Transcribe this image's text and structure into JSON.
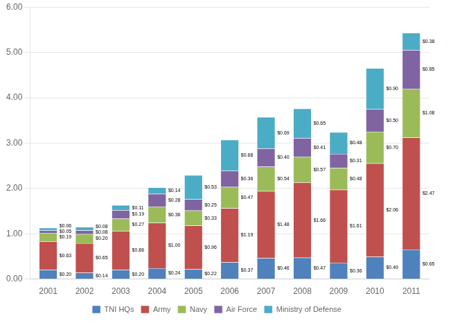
{
  "chart_data": {
    "type": "bar",
    "stacked": true,
    "grid": true,
    "legend": "bottom",
    "data_labels": true,
    "categories": [
      "2001",
      "2002",
      "2003",
      "2004",
      "2005",
      "2006",
      "2007",
      "2008",
      "2009",
      "2010",
      "2011"
    ],
    "series": [
      {
        "name": "TNI HQs",
        "color": "#4F81BD",
        "values": [
          0.2,
          0.14,
          0.2,
          0.24,
          0.22,
          0.37,
          0.46,
          0.47,
          0.36,
          0.49,
          0.65
        ],
        "value_labels": [
          "$0.20",
          "$0.14",
          "$0.20",
          "$0.24",
          "$0.22",
          "$0.37",
          "$0.46",
          "$0.47",
          "$0.36",
          "$0.49",
          "$0.65"
        ]
      },
      {
        "name": "Army",
        "color": "#C0504D",
        "values": [
          0.63,
          0.65,
          0.86,
          1.0,
          0.96,
          1.19,
          1.48,
          1.66,
          1.61,
          2.06,
          2.47
        ],
        "value_labels": [
          "$0.63",
          "$0.65",
          "$0.86",
          "$1.00",
          "$0.96",
          "$1.19",
          "$1.48",
          "$1.66",
          "$1.61",
          "$2.06",
          "$2.47"
        ]
      },
      {
        "name": "Navy",
        "color": "#9BBB59",
        "values": [
          0.19,
          0.2,
          0.27,
          0.36,
          0.33,
          0.47,
          0.54,
          0.57,
          0.48,
          0.7,
          1.08
        ],
        "value_labels": [
          "$0.19",
          "$0.20",
          "$0.27",
          "$0.36",
          "$0.33",
          "$0.47",
          "$0.54",
          "$0.57",
          "$0.48",
          "$0.70",
          "$1.08"
        ]
      },
      {
        "name": "Air Force",
        "color": "#8064A2",
        "values": [
          0.05,
          0.08,
          0.19,
          0.28,
          0.25,
          0.36,
          0.4,
          0.41,
          0.31,
          0.5,
          0.85
        ],
        "value_labels": [
          "$0.05",
          "$0.08",
          "$0.19",
          "$0.28",
          "$0.25",
          "$0.36",
          "$0.40",
          "$0.41",
          "$0.31",
          "$0.50",
          "$0.85"
        ]
      },
      {
        "name": "Ministry of Defense",
        "color": "#4BACC6",
        "values": [
          0.06,
          0.08,
          0.11,
          0.14,
          0.53,
          0.68,
          0.69,
          0.65,
          0.48,
          0.9,
          0.38
        ],
        "value_labels": [
          "$0.06",
          "$0.08",
          "$0.11",
          "$0.14",
          "$0.53",
          "$0.68",
          "$0.69",
          "$0.65",
          "$0.48",
          "$0.90",
          "$0.38"
        ]
      }
    ],
    "ylim": [
      0,
      6.0
    ],
    "yticks": [
      {
        "value": 0,
        "label": "0.00"
      },
      {
        "value": 1,
        "label": "1.00"
      },
      {
        "value": 2,
        "label": "2.00"
      },
      {
        "value": 3,
        "label": "3.00"
      },
      {
        "value": 4,
        "label": "4.00"
      },
      {
        "value": 5,
        "label": "5.00"
      },
      {
        "value": 6,
        "label": "6.00"
      }
    ]
  }
}
